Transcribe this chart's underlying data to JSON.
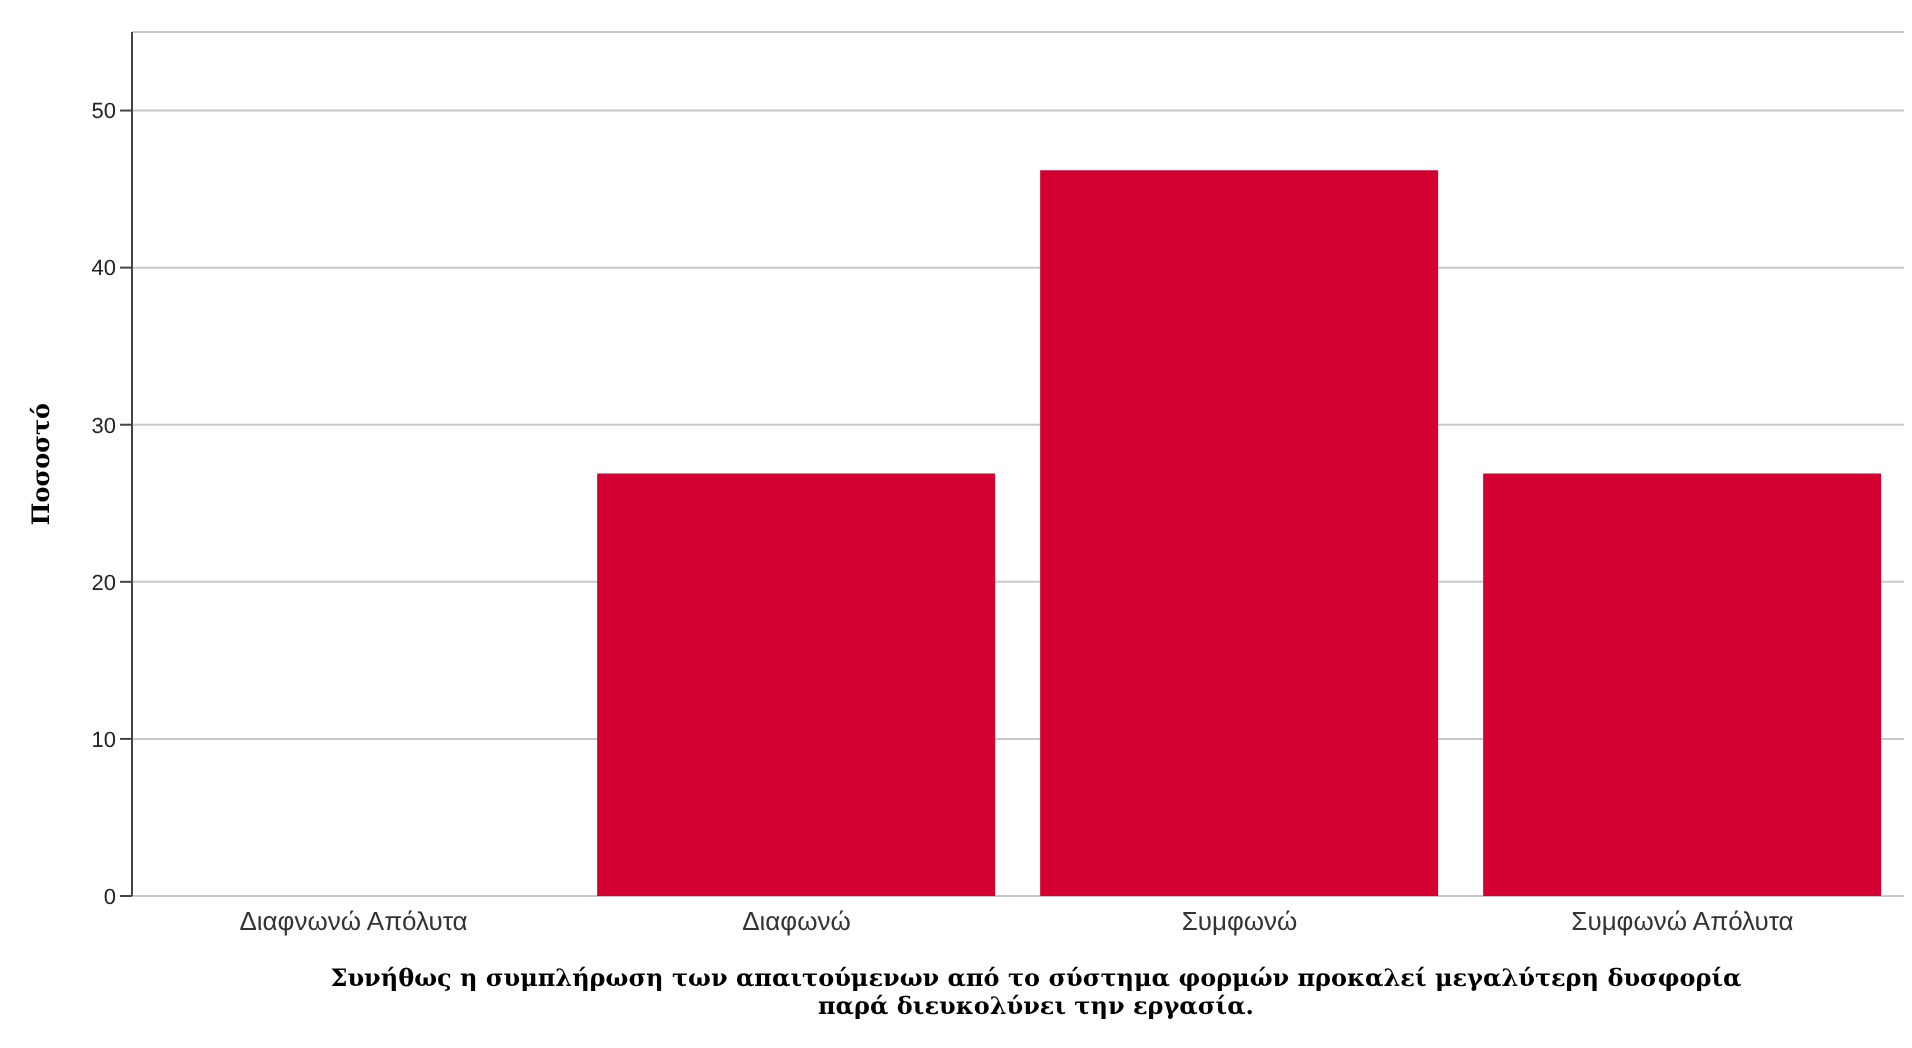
{
  "chart_data": {
    "type": "bar",
    "categories": [
      "Διαφνωνώ Απόλυτα",
      "Διαφωνώ",
      "Συμφωνώ",
      "Συμφωνώ Απόλυτα"
    ],
    "values": [
      0,
      26.9,
      46.2,
      26.9
    ],
    "color": "#d50032",
    "ylabel": "Ποσοστό",
    "xlabel": "Συνήθως η συμπλήρωση των απαιτούμενων από το σύστημα φορμών προκαλεί μεγαλύτερη δυσφορία παρά διευκολύνει την εργασία.",
    "ylim": [
      0,
      55
    ],
    "yticks": [
      0,
      10,
      20,
      30,
      40,
      50
    ],
    "grid": "y"
  }
}
